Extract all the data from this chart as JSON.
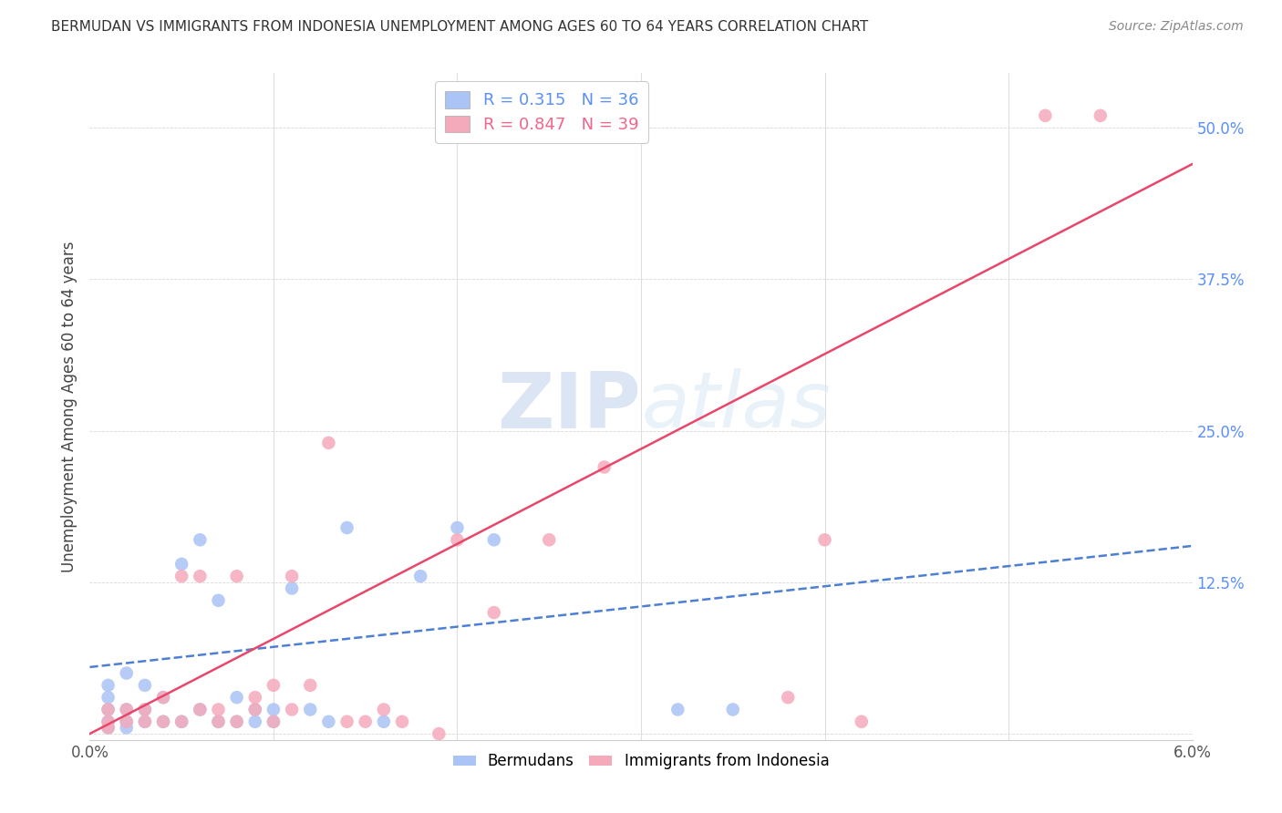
{
  "title": "BERMUDAN VS IMMIGRANTS FROM INDONESIA UNEMPLOYMENT AMONG AGES 60 TO 64 YEARS CORRELATION CHART",
  "source": "Source: ZipAtlas.com",
  "ylabel": "Unemployment Among Ages 60 to 64 years",
  "yticks": [
    0.0,
    0.125,
    0.25,
    0.375,
    0.5
  ],
  "ytick_labels": [
    "",
    "12.5%",
    "25.0%",
    "37.5%",
    "50.0%"
  ],
  "xlim": [
    0.0,
    0.06
  ],
  "ylim": [
    -0.005,
    0.545
  ],
  "legend_entries": [
    {
      "label_r": "R = ",
      "r_val": "0.315",
      "label_n": "   N = ",
      "n_val": "36",
      "color": "#5b8ff9"
    },
    {
      "label_r": "R = ",
      "r_val": "0.847",
      "label_n": "   N = ",
      "n_val": "39",
      "color": "#f4648a"
    }
  ],
  "watermark_zip": "ZIP",
  "watermark_atlas": "atlas",
  "blue_scatter_x": [
    0.001,
    0.001,
    0.001,
    0.001,
    0.001,
    0.002,
    0.002,
    0.002,
    0.002,
    0.003,
    0.003,
    0.003,
    0.004,
    0.004,
    0.005,
    0.005,
    0.006,
    0.006,
    0.007,
    0.007,
    0.008,
    0.008,
    0.009,
    0.009,
    0.01,
    0.01,
    0.011,
    0.012,
    0.013,
    0.014,
    0.016,
    0.018,
    0.02,
    0.022,
    0.032,
    0.035
  ],
  "blue_scatter_y": [
    0.005,
    0.01,
    0.02,
    0.03,
    0.04,
    0.005,
    0.01,
    0.02,
    0.05,
    0.01,
    0.02,
    0.04,
    0.01,
    0.03,
    0.01,
    0.14,
    0.02,
    0.16,
    0.01,
    0.11,
    0.01,
    0.03,
    0.01,
    0.02,
    0.01,
    0.02,
    0.12,
    0.02,
    0.01,
    0.17,
    0.01,
    0.13,
    0.17,
    0.16,
    0.02,
    0.02
  ],
  "pink_scatter_x": [
    0.001,
    0.001,
    0.001,
    0.002,
    0.002,
    0.003,
    0.003,
    0.004,
    0.004,
    0.005,
    0.005,
    0.006,
    0.006,
    0.007,
    0.007,
    0.008,
    0.008,
    0.009,
    0.009,
    0.01,
    0.01,
    0.011,
    0.011,
    0.012,
    0.013,
    0.014,
    0.015,
    0.016,
    0.017,
    0.019,
    0.02,
    0.022,
    0.025,
    0.028,
    0.038,
    0.04,
    0.042,
    0.052,
    0.055
  ],
  "pink_scatter_y": [
    0.005,
    0.01,
    0.02,
    0.01,
    0.02,
    0.01,
    0.02,
    0.01,
    0.03,
    0.01,
    0.13,
    0.02,
    0.13,
    0.01,
    0.02,
    0.01,
    0.13,
    0.02,
    0.03,
    0.01,
    0.04,
    0.02,
    0.13,
    0.04,
    0.24,
    0.01,
    0.01,
    0.02,
    0.01,
    0.0,
    0.16,
    0.1,
    0.16,
    0.22,
    0.03,
    0.16,
    0.01,
    0.51,
    0.51
  ],
  "blue_line_x": [
    0.0,
    0.06
  ],
  "blue_line_y": [
    0.055,
    0.155
  ],
  "pink_line_x": [
    0.0,
    0.06
  ],
  "pink_line_y": [
    0.0,
    0.47
  ],
  "scatter_size": 110,
  "blue_color": "#aac4f5",
  "pink_color": "#f5aabb",
  "blue_line_color": "#4d7fd4",
  "pink_line_color": "#e8476a",
  "grid_color": "#d8d8d8",
  "background_color": "#ffffff",
  "title_color": "#333333",
  "right_tick_color": "#5b8ff9",
  "watermark_color_zip": "#c5d5ee",
  "watermark_color_atlas": "#d5e5f5"
}
